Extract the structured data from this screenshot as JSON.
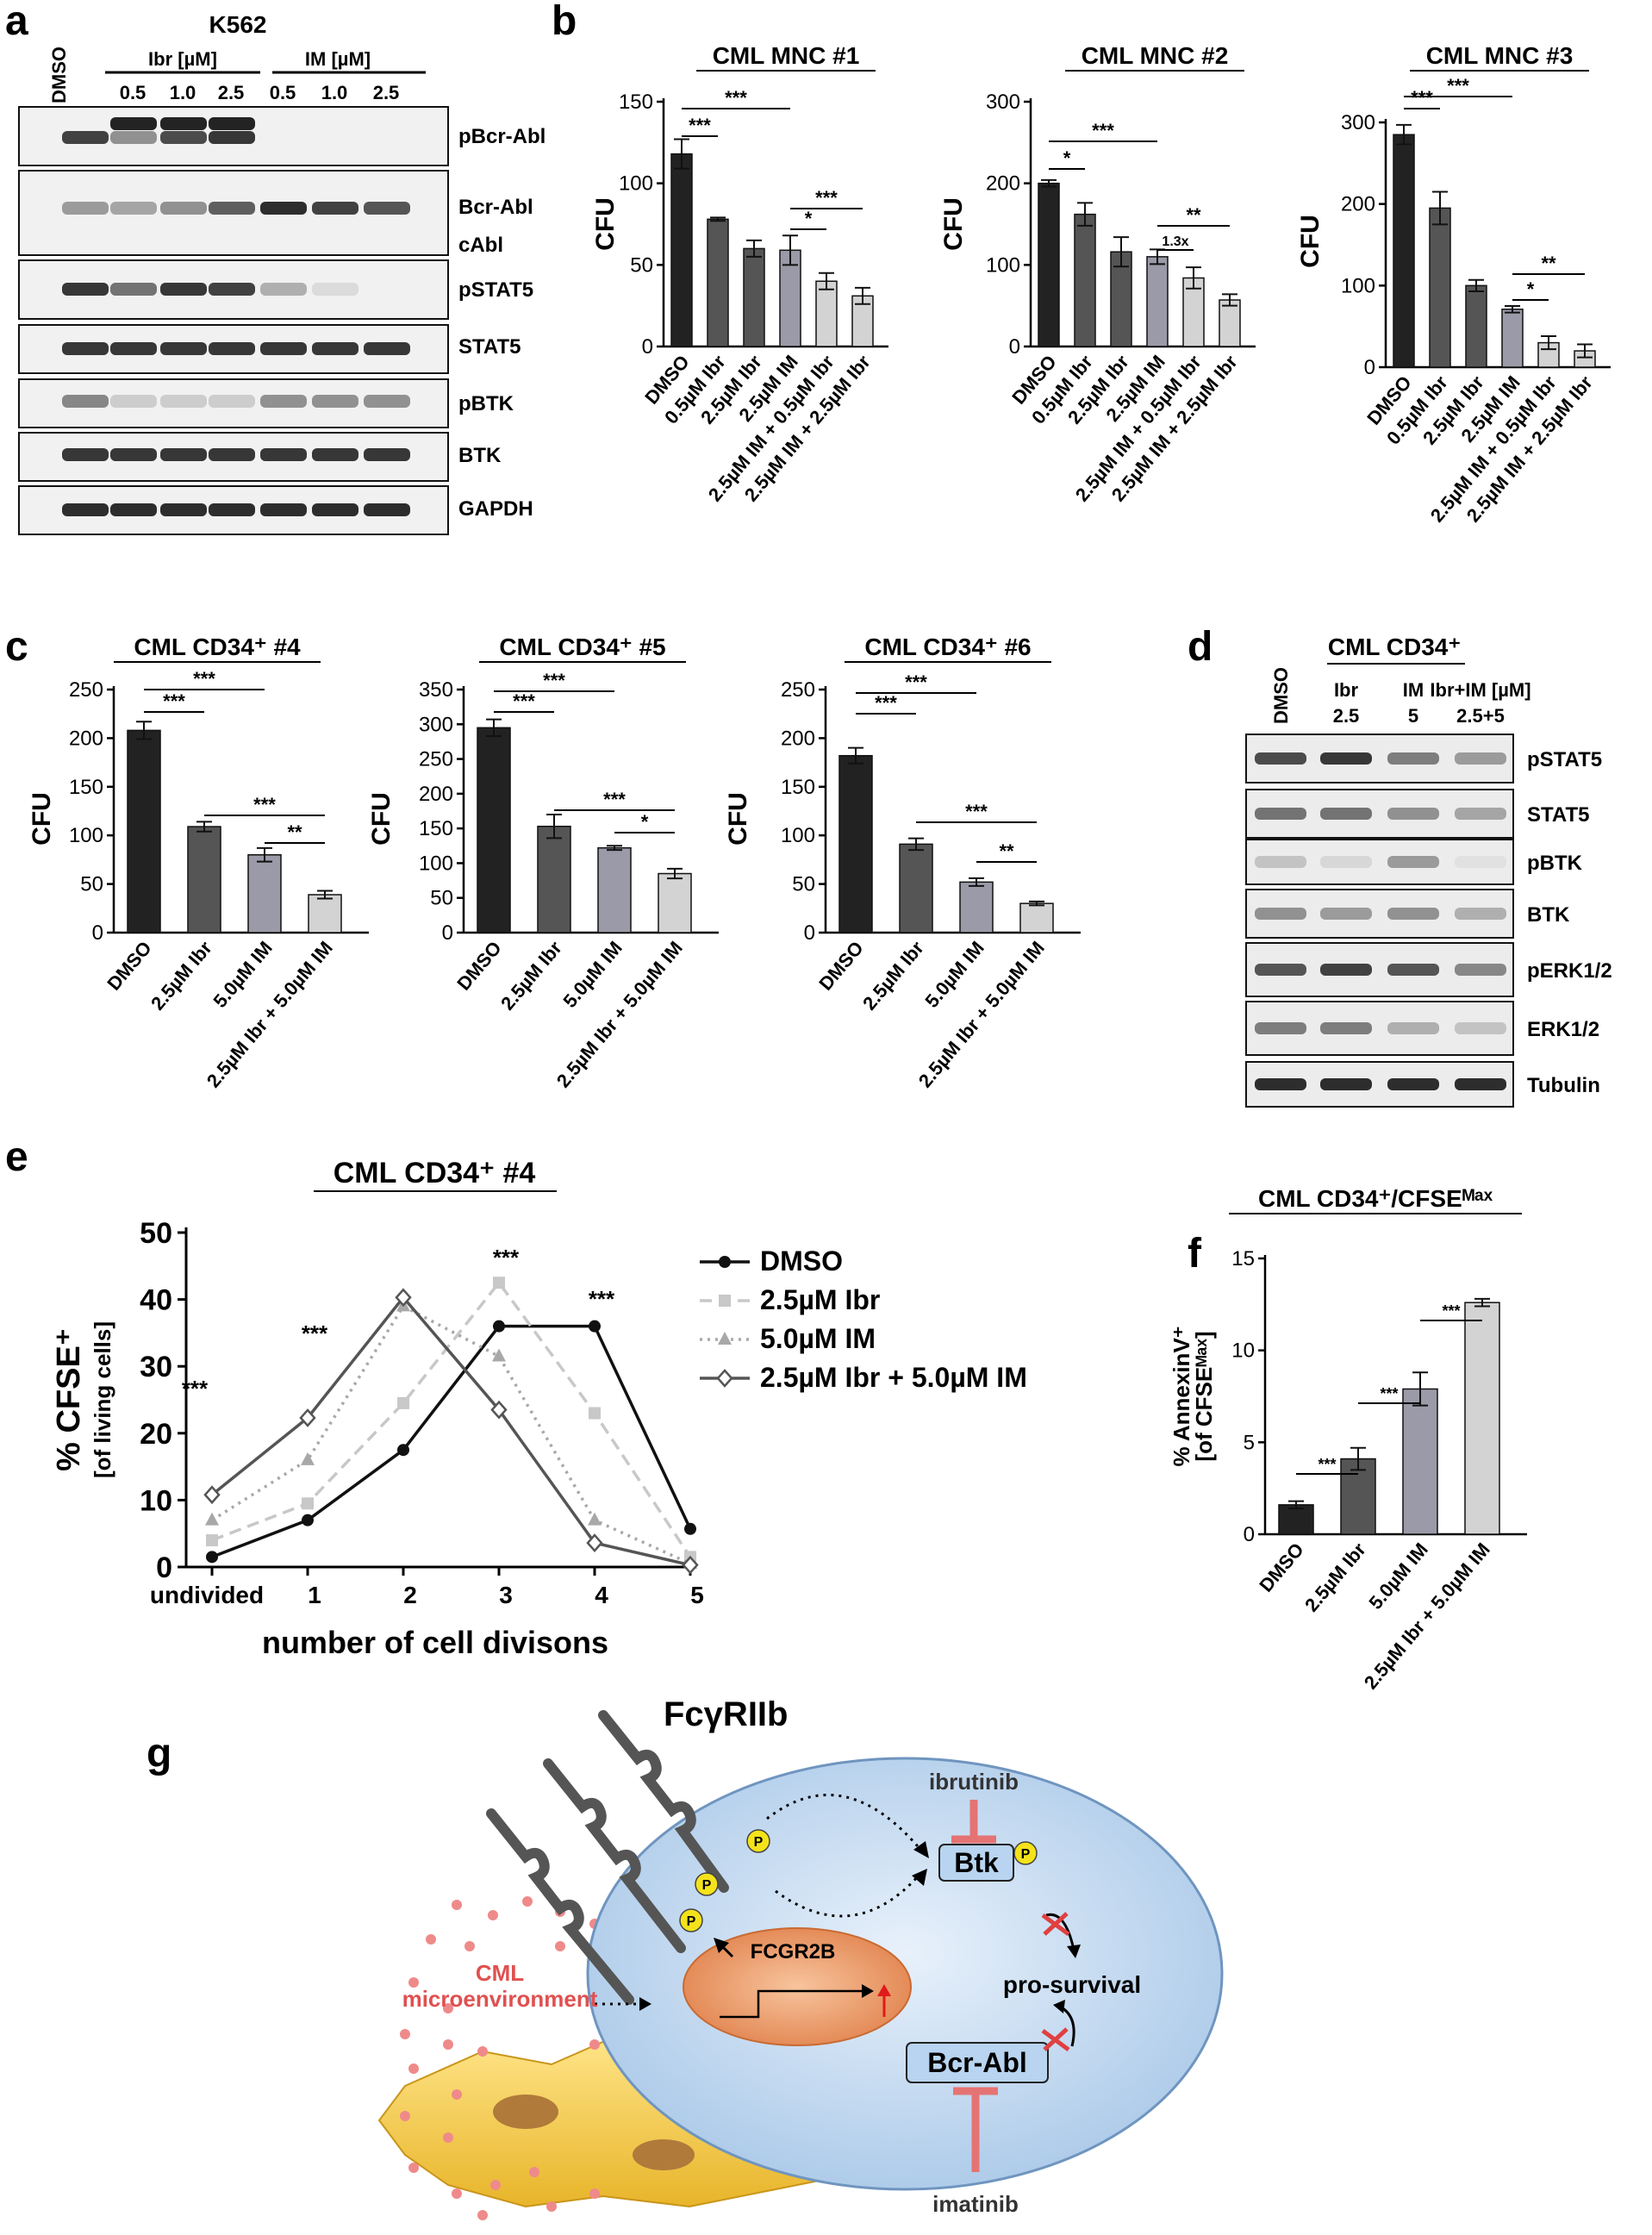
{
  "panels": {
    "a": "a",
    "b": "b",
    "c": "c",
    "d": "d",
    "e": "e",
    "f": "f",
    "g": "g"
  },
  "blot_a": {
    "title": "K562",
    "dmso": "DMSO",
    "group1": "Ibr [µM]",
    "group2": "IM [µM]",
    "lane_labels": [
      "0.5",
      "1.0",
      "2.5",
      "0.5",
      "1.0",
      "2.5"
    ],
    "band_labels": [
      "pBcr-Abl",
      "Bcr-Abl",
      "cAbl",
      "pSTAT5",
      "STAT5",
      "pBTK",
      "BTK",
      "GAPDH"
    ]
  },
  "blot_d": {
    "title": "CML CD34⁺",
    "dmso": "DMSO",
    "lane_labels": [
      [
        "Ibr",
        "2.5"
      ],
      [
        "IM",
        "5"
      ],
      [
        "Ibr+IM [µM]",
        "2.5+5"
      ]
    ],
    "band_labels": [
      "pSTAT5",
      "STAT5",
      "pBTK",
      "BTK",
      "pERK1/2",
      "ERK1/2",
      "Tubulin"
    ]
  },
  "chart_data": [
    {
      "panel": "b",
      "type": "bar",
      "title": "CML MNC #1",
      "ylabel": "CFU",
      "ylim": [
        0,
        150
      ],
      "categories": [
        "DMSO",
        "0.5µM Ibr",
        "2.5µM Ibr",
        "2.5µM IM",
        "2.5µM IM + 0.5µM Ibr",
        "2.5µM IM + 2.5µM Ibr"
      ],
      "values": [
        118,
        78,
        60,
        59,
        40,
        31
      ],
      "errors": [
        9,
        1,
        5,
        9,
        5,
        5
      ],
      "colors": [
        "#222222",
        "#555555",
        "#555555",
        "#9a9aa8",
        "#d3d3d3",
        "#d3d3d3"
      ],
      "ticks": [
        0,
        50,
        100,
        150
      ],
      "significance": [
        [
          "***"
        ],
        [
          "***"
        ],
        [
          "*"
        ],
        [
          "***"
        ]
      ]
    },
    {
      "panel": "b",
      "type": "bar",
      "title": "CML MNC #2",
      "ylabel": "CFU",
      "ylim": [
        0,
        300
      ],
      "categories": [
        "DMSO",
        "0.5µM Ibr",
        "2.5µM Ibr",
        "2.5µM IM",
        "2.5µM IM + 0.5µM Ibr",
        "2.5µM IM + 2.5µM Ibr"
      ],
      "values": [
        200,
        162,
        116,
        110,
        84,
        57
      ],
      "errors": [
        4,
        14,
        18,
        9,
        13,
        7
      ],
      "colors": [
        "#222222",
        "#555555",
        "#555555",
        "#9a9aa8",
        "#d3d3d3",
        "#d3d3d3"
      ],
      "ticks": [
        0,
        100,
        200,
        300
      ],
      "significance": [
        "*",
        "***",
        "1.3x",
        "**"
      ]
    },
    {
      "panel": "b",
      "type": "bar",
      "title": "CML MNC #3",
      "ylabel": "CFU",
      "ylim": [
        0,
        300
      ],
      "categories": [
        "DMSO",
        "0.5µM Ibr",
        "2.5µM Ibr",
        "2.5µM IM",
        "2.5µM IM + 0.5µM Ibr",
        "2.5µM IM + 2.5µM Ibr"
      ],
      "values": [
        285,
        195,
        100,
        71,
        30,
        20
      ],
      "errors": [
        12,
        20,
        7,
        4,
        8,
        8
      ],
      "colors": [
        "#222222",
        "#555555",
        "#555555",
        "#9a9aa8",
        "#d3d3d3",
        "#d3d3d3"
      ],
      "ticks": [
        0,
        100,
        200,
        300
      ],
      "significance": [
        "***",
        "***",
        "*",
        "**"
      ]
    },
    {
      "panel": "c",
      "type": "bar",
      "title": "CML CD34⁺ #4",
      "ylabel": "CFU",
      "ylim": [
        0,
        250
      ],
      "categories": [
        "DMSO",
        "2.5µM Ibr",
        "5.0µM IM",
        "2.5µM Ibr + 5.0µM IM"
      ],
      "values": [
        208,
        109,
        80,
        39
      ],
      "errors": [
        9,
        5,
        7,
        4
      ],
      "colors": [
        "#222222",
        "#555555",
        "#9a9aa8",
        "#d3d3d3"
      ],
      "ticks": [
        0,
        50,
        100,
        150,
        200,
        250
      ],
      "significance": [
        "***",
        "***",
        "***",
        "**"
      ]
    },
    {
      "panel": "c",
      "type": "bar",
      "title": "CML CD34⁺ #5",
      "ylabel": "CFU",
      "ylim": [
        0,
        350
      ],
      "categories": [
        "DMSO",
        "2.5µM Ibr",
        "5.0µM IM",
        "2.5µM Ibr + 5.0µM IM"
      ],
      "values": [
        295,
        153,
        122,
        85
      ],
      "errors": [
        12,
        17,
        3,
        7
      ],
      "colors": [
        "#222222",
        "#555555",
        "#9a9aa8",
        "#d3d3d3"
      ],
      "ticks": [
        0,
        50,
        100,
        150,
        200,
        250,
        300,
        350
      ],
      "significance": [
        "***",
        "***",
        "***",
        "*"
      ]
    },
    {
      "panel": "c",
      "type": "bar",
      "title": "CML CD34⁺ #6",
      "ylabel": "CFU",
      "ylim": [
        0,
        250
      ],
      "categories": [
        "DMSO",
        "2.5µM Ibr",
        "5.0µM IM",
        "2.5µM Ibr + 5.0µM IM"
      ],
      "values": [
        182,
        91,
        52,
        30
      ],
      "errors": [
        8,
        6,
        4,
        2
      ],
      "colors": [
        "#222222",
        "#555555",
        "#9a9aa8",
        "#d3d3d3"
      ],
      "ticks": [
        0,
        50,
        100,
        150,
        200,
        250
      ],
      "significance": [
        "***",
        "***",
        "***",
        "**"
      ]
    },
    {
      "panel": "e",
      "type": "line",
      "title": "CML CD34⁺ #4",
      "xlabel": "number of cell divisons",
      "ylabel": "% CFSE⁺",
      "ylabel2": "[of living cells]",
      "x": [
        "undivided",
        "1",
        "2",
        "3",
        "4",
        "5"
      ],
      "ylim": [
        0,
        50
      ],
      "ticks": [
        0,
        10,
        20,
        30,
        40,
        50
      ],
      "series": [
        {
          "name": "DMSO",
          "values": [
            1.5,
            7,
            17.5,
            36,
            36,
            5.7
          ],
          "color": "#111111",
          "dash": "",
          "marker": "circle"
        },
        {
          "name": "2.5µM Ibr",
          "values": [
            4,
            9.5,
            24.5,
            42.5,
            23,
            1.5
          ],
          "color": "#c8c8c8",
          "dash": "14,8",
          "marker": "square"
        },
        {
          "name": "5.0µM IM",
          "values": [
            7,
            16,
            39,
            31.5,
            7,
            0.5
          ],
          "color": "#a8a8a8",
          "dash": "3,6",
          "marker": "triangle"
        },
        {
          "name": "2.5µM Ibr + 5.0µM IM",
          "values": [
            10.8,
            22.3,
            40.3,
            23.5,
            3.6,
            0.3
          ],
          "color": "#555555",
          "dash": "",
          "marker": "diamond"
        }
      ],
      "significance": [
        "***",
        "***",
        "***",
        "***"
      ]
    },
    {
      "panel": "f",
      "type": "bar",
      "title": "CML CD34⁺/CFSEᴹᵃˣ",
      "ylabel": "% AnnexinV⁺",
      "ylabel2": "[of CFSEᴹᵃˣ]",
      "ylim": [
        0,
        15
      ],
      "categories": [
        "DMSO",
        "2.5µM Ibr",
        "5.0µM IM",
        "2.5µM Ibr + 5.0µM IM"
      ],
      "values": [
        1.6,
        4.1,
        7.9,
        12.6
      ],
      "errors": [
        0.2,
        0.6,
        0.9,
        0.2
      ],
      "colors": [
        "#222222",
        "#555555",
        "#9a9aa8",
        "#d3d3d3"
      ],
      "ticks": [
        0,
        5,
        10,
        15
      ],
      "significance": [
        "***",
        "***",
        "***"
      ]
    }
  ],
  "diagram_g": {
    "receptor": "FcγRIIb",
    "inhibitor1": "ibrutinib",
    "inhibitor2": "imatinib",
    "btk": "Btk",
    "bcr_abl": "Bcr-Abl",
    "gene": "FCGR2B",
    "survival": "pro-survival",
    "micro1": "CML",
    "micro2": "microenvironment",
    "phospho": "P"
  }
}
